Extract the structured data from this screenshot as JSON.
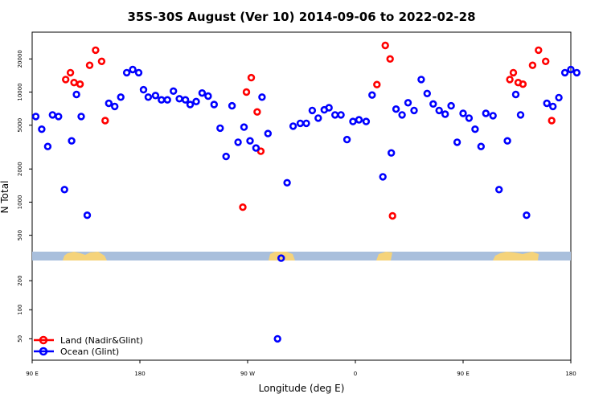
{
  "chart_data": {
    "type": "scatter",
    "title": "35S-30S August (Ver 10)   2014-09-06 to 2022-02-28",
    "xlabel": "Longitude (deg E)",
    "ylabel": "N Total",
    "y_scale": "log",
    "x_axis": {
      "ticks": [
        {
          "value": 90,
          "label": "90 E"
        },
        {
          "value": 180,
          "label": "180"
        },
        {
          "value": 270,
          "label": "90 W"
        },
        {
          "value": 360,
          "label": "0"
        },
        {
          "value": 450,
          "label": "90 E"
        },
        {
          "value": 540,
          "label": "180"
        }
      ],
      "range": [
        90,
        540
      ]
    },
    "y_axis_upper": {
      "range": [
        300,
        35000
      ],
      "ticks": [
        {
          "value": 500,
          "label": "500"
        },
        {
          "value": 1000,
          "label": "1000"
        },
        {
          "value": 2000,
          "label": "2000"
        },
        {
          "value": 5000,
          "label": "5000"
        },
        {
          "value": 10000,
          "label": "10000"
        },
        {
          "value": 20000,
          "label": "20000"
        }
      ]
    },
    "y_axis_lower": {
      "range": [
        30,
        330
      ],
      "ticks": [
        {
          "value": 50,
          "label": "50"
        },
        {
          "value": 100,
          "label": "100"
        },
        {
          "value": 200,
          "label": "200"
        }
      ]
    },
    "legend": {
      "position": "bottom-left",
      "entries": [
        {
          "name": "Land (Nadir&Glint)",
          "color": "#ff0000"
        },
        {
          "name": "Ocean (Glint)",
          "color": "#0000ff"
        }
      ]
    },
    "series": [
      {
        "name": "Land (Nadir&Glint)",
        "color": "#ff0000",
        "points": [
          [
            118,
            13000
          ],
          [
            122,
            15000
          ],
          [
            125,
            12200
          ],
          [
            130,
            11800
          ],
          [
            138,
            17500
          ],
          [
            143,
            24000
          ],
          [
            148,
            19000
          ],
          [
            151,
            5500
          ],
          [
            266,
            900
          ],
          [
            269,
            10000
          ],
          [
            273,
            13500
          ],
          [
            278,
            6600
          ],
          [
            281,
            2900
          ],
          [
            378,
            11700
          ],
          [
            385,
            26500
          ],
          [
            389,
            20000
          ],
          [
            391,
            750
          ],
          [
            489,
            13000
          ],
          [
            492,
            15000
          ],
          [
            496,
            12200
          ],
          [
            500,
            11800
          ],
          [
            508,
            17500
          ],
          [
            513,
            24000
          ],
          [
            519,
            19000
          ],
          [
            524,
            5500
          ]
        ]
      },
      {
        "name": "Ocean (Glint)",
        "color": "#0000ff",
        "points": [
          [
            93,
            6000
          ],
          [
            98,
            4600
          ],
          [
            103,
            3200
          ],
          [
            107,
            6200
          ],
          [
            112,
            6000
          ],
          [
            117,
            1300
          ],
          [
            123,
            3600
          ],
          [
            127,
            9500
          ],
          [
            131,
            6000
          ],
          [
            136,
            760
          ],
          [
            154,
            7900
          ],
          [
            159,
            7400
          ],
          [
            164,
            9000
          ],
          [
            169,
            15000
          ],
          [
            174,
            16000
          ],
          [
            179,
            15000
          ],
          [
            183,
            10500
          ],
          [
            187,
            9000
          ],
          [
            193,
            9300
          ],
          [
            198,
            8500
          ],
          [
            203,
            8500
          ],
          [
            208,
            10200
          ],
          [
            213,
            8700
          ],
          [
            218,
            8500
          ],
          [
            222,
            7700
          ],
          [
            227,
            8200
          ],
          [
            232,
            9800
          ],
          [
            237,
            9200
          ],
          [
            242,
            7700
          ],
          [
            247,
            4700
          ],
          [
            252,
            2600
          ],
          [
            257,
            7500
          ],
          [
            262,
            3500
          ],
          [
            267,
            4800
          ],
          [
            272,
            3600
          ],
          [
            277,
            3100
          ],
          [
            282,
            9000
          ],
          [
            287,
            4200
          ],
          [
            295,
            50
          ],
          [
            298,
            310
          ],
          [
            303,
            1500
          ],
          [
            308,
            4900
          ],
          [
            314,
            5200
          ],
          [
            319,
            5200
          ],
          [
            324,
            6800
          ],
          [
            329,
            5800
          ],
          [
            334,
            6900
          ],
          [
            338,
            7200
          ],
          [
            343,
            6200
          ],
          [
            348,
            6200
          ],
          [
            353,
            3700
          ],
          [
            358,
            5400
          ],
          [
            363,
            5600
          ],
          [
            369,
            5400
          ],
          [
            374,
            9400
          ],
          [
            383,
            1700
          ],
          [
            390,
            2800
          ],
          [
            394,
            7000
          ],
          [
            399,
            6200
          ],
          [
            404,
            8000
          ],
          [
            409,
            6800
          ],
          [
            415,
            13000
          ],
          [
            420,
            9700
          ],
          [
            425,
            7800
          ],
          [
            430,
            6800
          ],
          [
            435,
            6300
          ],
          [
            440,
            7500
          ],
          [
            445,
            3500
          ],
          [
            450,
            6400
          ],
          [
            455,
            5800
          ],
          [
            460,
            4600
          ],
          [
            465,
            3200
          ],
          [
            469,
            6400
          ],
          [
            475,
            6100
          ],
          [
            480,
            1300
          ],
          [
            487,
            3600
          ],
          [
            494,
            9500
          ],
          [
            498,
            6200
          ],
          [
            503,
            760
          ],
          [
            520,
            7900
          ],
          [
            525,
            7400
          ],
          [
            530,
            8900
          ],
          [
            535,
            15000
          ],
          [
            540,
            16000
          ],
          [
            545,
            15000
          ]
        ]
      }
    ]
  }
}
